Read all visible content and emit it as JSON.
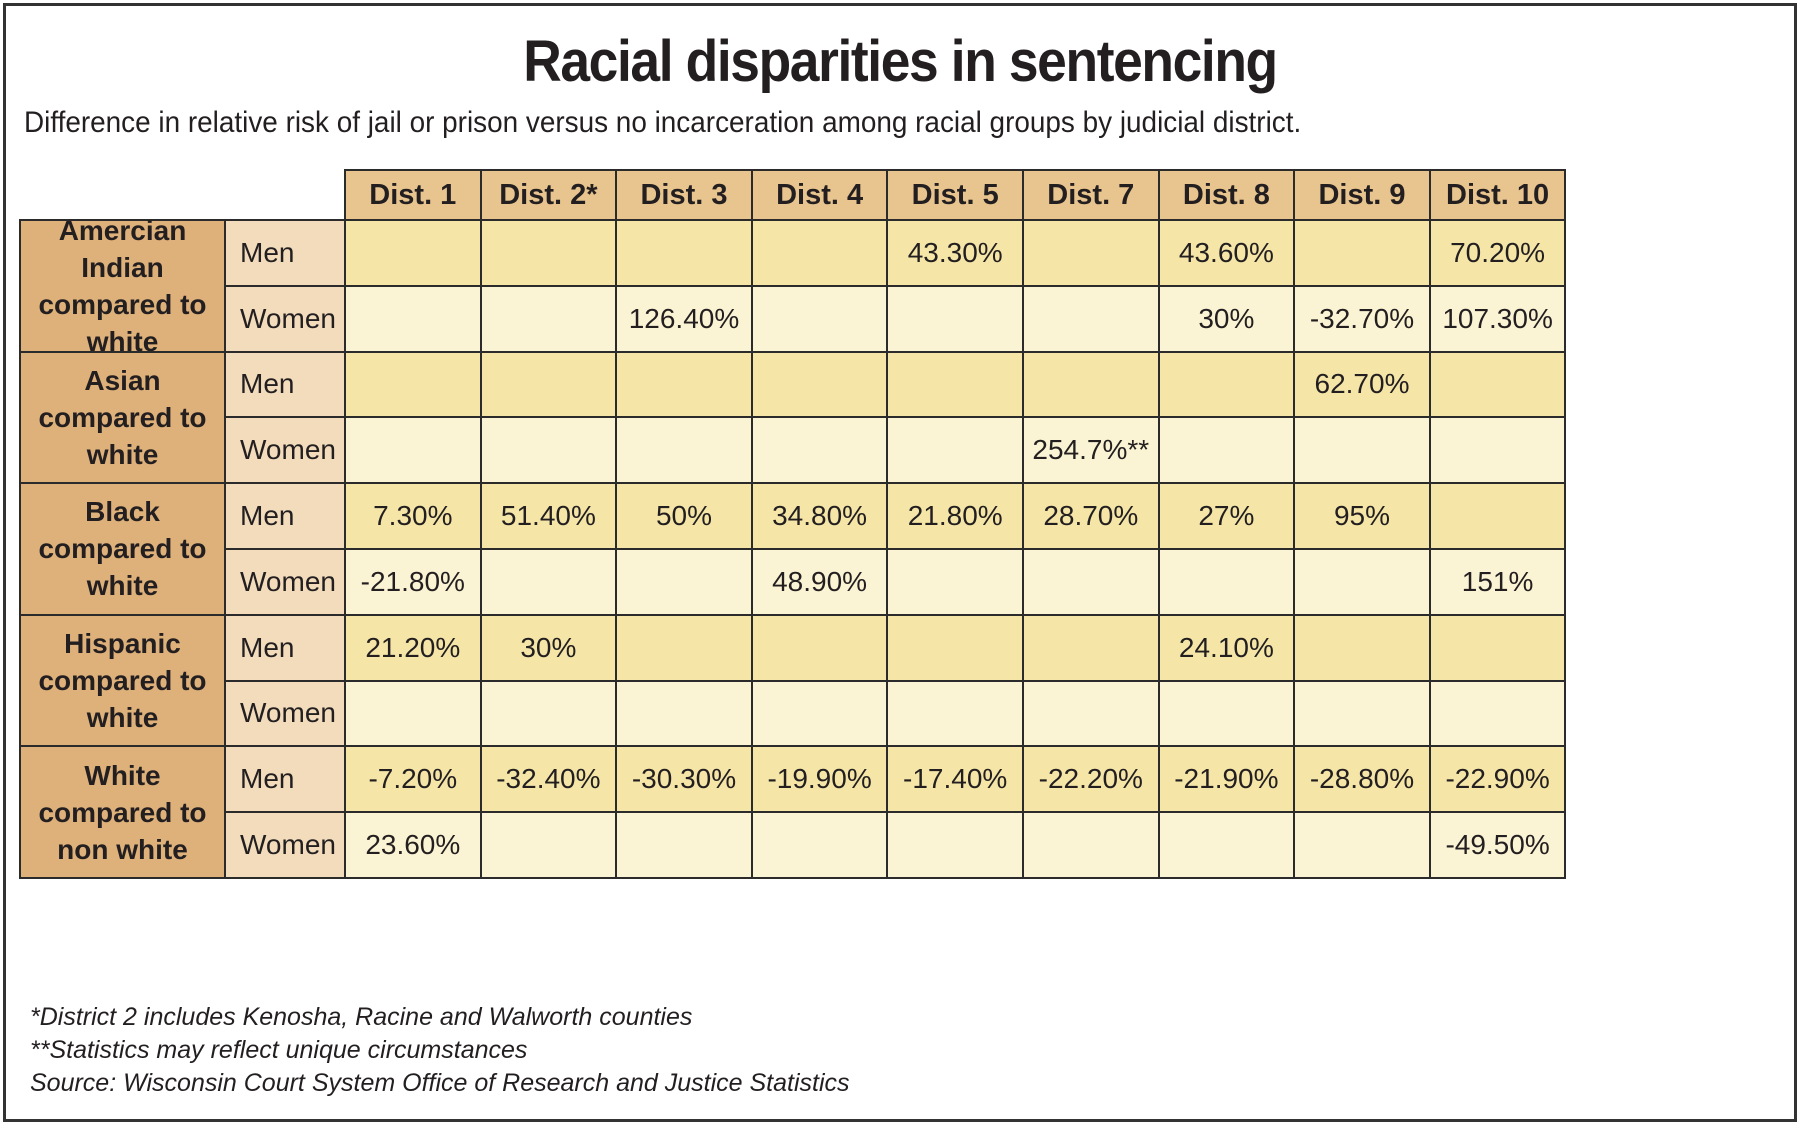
{
  "chart_data": {
    "type": "table",
    "title": "Racial disparities in sentencing",
    "subtitle": "Difference in relative risk of jail or prison versus no incarceration among racial groups by judicial district.",
    "columns": [
      "Dist. 1",
      "Dist.  2*",
      "Dist. 3",
      "Dist. 4",
      "Dist. 5",
      "Dist. 7",
      "Dist. 8",
      "Dist. 9",
      "Dist. 10"
    ],
    "groups": [
      {
        "label": "Amercian Indian compared to white",
        "rows": [
          {
            "sex": "Men",
            "values": [
              "",
              "",
              "",
              "",
              "43.30%",
              "",
              "43.60%",
              "",
              "70.20%"
            ]
          },
          {
            "sex": "Women",
            "values": [
              "",
              "",
              "126.40%",
              "",
              "",
              "",
              "30%",
              "-32.70%",
              "107.30%"
            ]
          }
        ]
      },
      {
        "label": "Asian compared to white",
        "rows": [
          {
            "sex": "Men",
            "values": [
              "",
              "",
              "",
              "",
              "",
              "",
              "",
              "62.70%",
              ""
            ]
          },
          {
            "sex": "Women",
            "values": [
              "",
              "",
              "",
              "",
              "",
              "254.7%**",
              "",
              "",
              ""
            ]
          }
        ]
      },
      {
        "label": "Black compared to white",
        "rows": [
          {
            "sex": "Men",
            "values": [
              "7.30%",
              "51.40%",
              "50%",
              "34.80%",
              "21.80%",
              "28.70%",
              "27%",
              "95%",
              ""
            ]
          },
          {
            "sex": "Women",
            "values": [
              "-21.80%",
              "",
              "",
              "48.90%",
              "",
              "",
              "",
              "",
              "151%"
            ]
          }
        ]
      },
      {
        "label": "Hispanic compared to white",
        "rows": [
          {
            "sex": "Men",
            "values": [
              "21.20%",
              "30%",
              "",
              "",
              "",
              "",
              "24.10%",
              "",
              ""
            ]
          },
          {
            "sex": "Women",
            "values": [
              "",
              "",
              "",
              "",
              "",
              "",
              "",
              "",
              ""
            ]
          }
        ]
      },
      {
        "label": "White compared to non white",
        "rows": [
          {
            "sex": "Men",
            "values": [
              "-7.20%",
              "-32.40%",
              "-30.30%",
              "-19.90%",
              "-17.40%",
              "-22.20%",
              "-21.90%",
              "-28.80%",
              "-22.90%"
            ]
          },
          {
            "sex": "Women",
            "values": [
              "23.60%",
              "",
              "",
              "",
              "",
              "",
              "",
              "",
              "-49.50%"
            ]
          }
        ]
      }
    ],
    "notes": [
      "*District 2 includes Kenosha, Racine and Walworth counties",
      "**Statistics may reflect unique circumstances",
      "Source: Wisconsin Court System Office of Research and Justice Statistics"
    ],
    "colors": {
      "header": "#e8c48e",
      "group": "#deb07a",
      "sex_label": "#f2dcbc",
      "men_row": "#f5e6a8",
      "women_row": "#fbf4d4"
    }
  }
}
